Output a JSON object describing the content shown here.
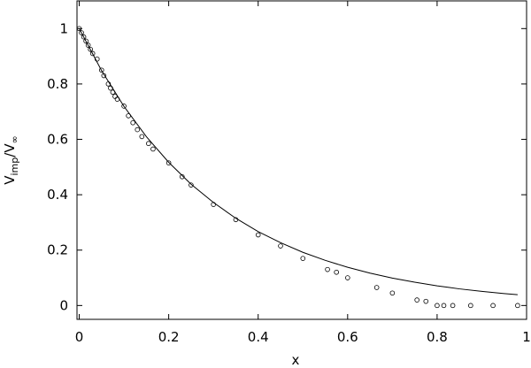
{
  "chart_data": {
    "type": "scatter-line",
    "xlabel": "x",
    "ylabel": [
      "V",
      "imp",
      "/V",
      "∞"
    ],
    "xlim": [
      -0.005,
      1
    ],
    "ylim": [
      -0.05,
      1.1
    ],
    "xticks": [
      0,
      0.2,
      0.4,
      0.6,
      0.8,
      1
    ],
    "yticks": [
      0,
      0.2,
      0.4,
      0.6,
      0.8,
      1
    ],
    "series": [
      {
        "kind": "line",
        "color": "#000000",
        "x": [
          0,
          0.05,
          0.1,
          0.15,
          0.2,
          0.25,
          0.3,
          0.35,
          0.4,
          0.45,
          0.5,
          0.55,
          0.6,
          0.65,
          0.7,
          0.75,
          0.8,
          0.85,
          0.9,
          0.95,
          0.98
        ],
        "values": [
          1,
          0.848,
          0.719,
          0.61,
          0.517,
          0.438,
          0.372,
          0.315,
          0.267,
          0.227,
          0.192,
          0.163,
          0.138,
          0.117,
          0.099,
          0.084,
          0.071,
          0.06,
          0.051,
          0.043,
          0.039
        ]
      },
      {
        "kind": "points",
        "color": "#000000",
        "x": [
          0,
          0.005,
          0.01,
          0.015,
          0.02,
          0.025,
          0.03,
          0.04,
          0.05,
          0.055,
          0.065,
          0.07,
          0.075,
          0.08,
          0.085,
          0.1,
          0.11,
          0.12,
          0.13,
          0.14,
          0.155,
          0.165,
          0.2,
          0.23,
          0.25,
          0.3,
          0.35,
          0.4,
          0.45,
          0.5,
          0.555,
          0.575,
          0.6,
          0.665,
          0.7,
          0.755,
          0.775,
          0.8,
          0.815,
          0.835,
          0.875,
          0.925,
          0.98
        ],
        "values": [
          1,
          0.985,
          0.97,
          0.955,
          0.94,
          0.925,
          0.91,
          0.89,
          0.85,
          0.83,
          0.8,
          0.785,
          0.77,
          0.755,
          0.745,
          0.72,
          0.685,
          0.66,
          0.635,
          0.61,
          0.585,
          0.565,
          0.515,
          0.465,
          0.435,
          0.365,
          0.31,
          0.255,
          0.215,
          0.17,
          0.13,
          0.12,
          0.1,
          0.065,
          0.045,
          0.02,
          0.015,
          0,
          0,
          0,
          0,
          0,
          0
        ]
      }
    ]
  }
}
